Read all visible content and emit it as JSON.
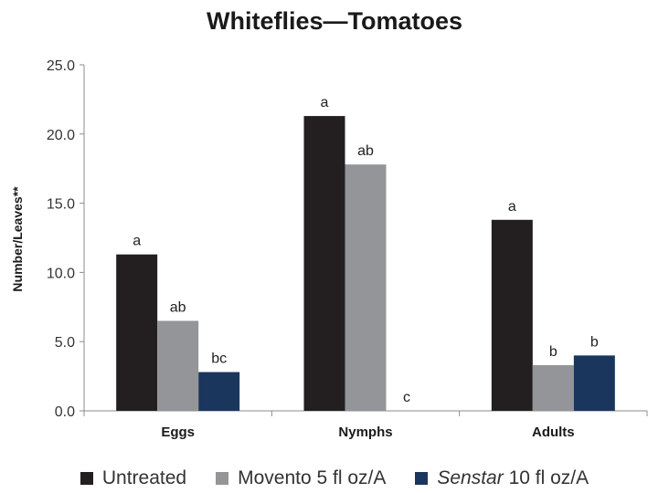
{
  "chart_data": {
    "type": "bar",
    "title": "Whiteflies—Tomatoes",
    "ylabel": "Number/Leaves**",
    "xlabel": "",
    "ylim": [
      0,
      25
    ],
    "yticks": [
      "0.0",
      "5.0",
      "10.0",
      "15.0",
      "20.0",
      "25.0"
    ],
    "categories": [
      "Eggs",
      "Nymphs",
      "Adults"
    ],
    "grid": false,
    "legend_position": "bottom",
    "series": [
      {
        "name": "Untreated",
        "color": "#231f20",
        "values": [
          11.3,
          21.3,
          13.8
        ],
        "labels": [
          "a",
          "a",
          "a"
        ]
      },
      {
        "name": "Movento 5 fl oz/A",
        "color": "#939598",
        "values": [
          6.5,
          17.8,
          3.3
        ],
        "labels": [
          "ab",
          "ab",
          "b"
        ]
      },
      {
        "name": "Senstar 10 fl oz/A",
        "name_italic": "Senstar",
        "name_rest": " 10 fl oz/A",
        "color": "#1b365d",
        "values": [
          2.8,
          0.0,
          4.0
        ],
        "labels": [
          "bc",
          "c",
          "b"
        ]
      }
    ]
  }
}
